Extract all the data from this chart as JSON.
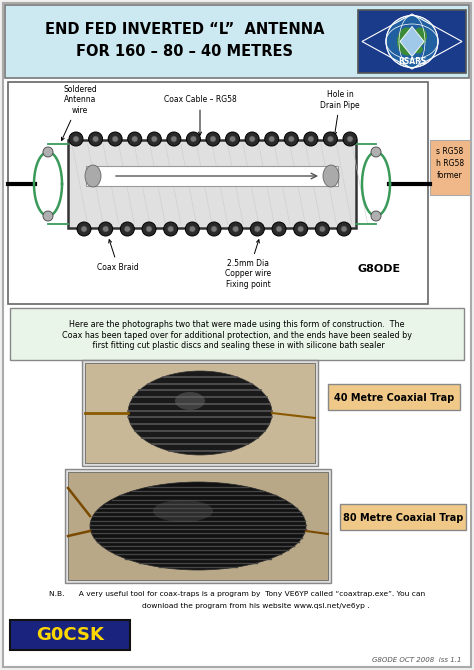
{
  "title_line1": "END FED INVERTED “L”  ANTENNA",
  "title_line2": "FOR 160 – 80 – 40 METRES",
  "title_bg": "#cce8f0",
  "page_bg": "#f0f0f0",
  "green_wire": "#3a9a5a",
  "label_coax_cable": "Coax Cable – RG58",
  "label_hole": "Hole in\nDrain Pipe",
  "label_soldered": "Soldered\nAntenna\nwire",
  "label_coax_braid": "Coax Braid",
  "label_copper": "2.5mm Dia\nCopper wire\nFixing point",
  "label_g8ode": "G8ODE",
  "desc_text": "Here are the photographs two that were made using this form of construction.  The\nCoax has been taped over for additional protection, and the ends have been sealed by\n first fitting cut plastic discs and sealing these in with silicone bath sealer",
  "label_40m": "40 Metre Coaxial Trap",
  "label_80m": "80 Metre Coaxial Trap",
  "nb_line1": "N.B.      A very useful tool for coax-traps is a program by  Tony VE6YP called “coaxtrap.exe”. You can",
  "nb_line2": "                download the program from his website www.qsl.net/ve6yp .",
  "callsign": "G0CSK",
  "callsign_bg": "#1a237e",
  "callsign_fg": "#ffd700",
  "footer": "G8ODE OCT 2008  iss 1.1",
  "trap_label_bg": "#f0c888",
  "trap_label_border": "#888888"
}
